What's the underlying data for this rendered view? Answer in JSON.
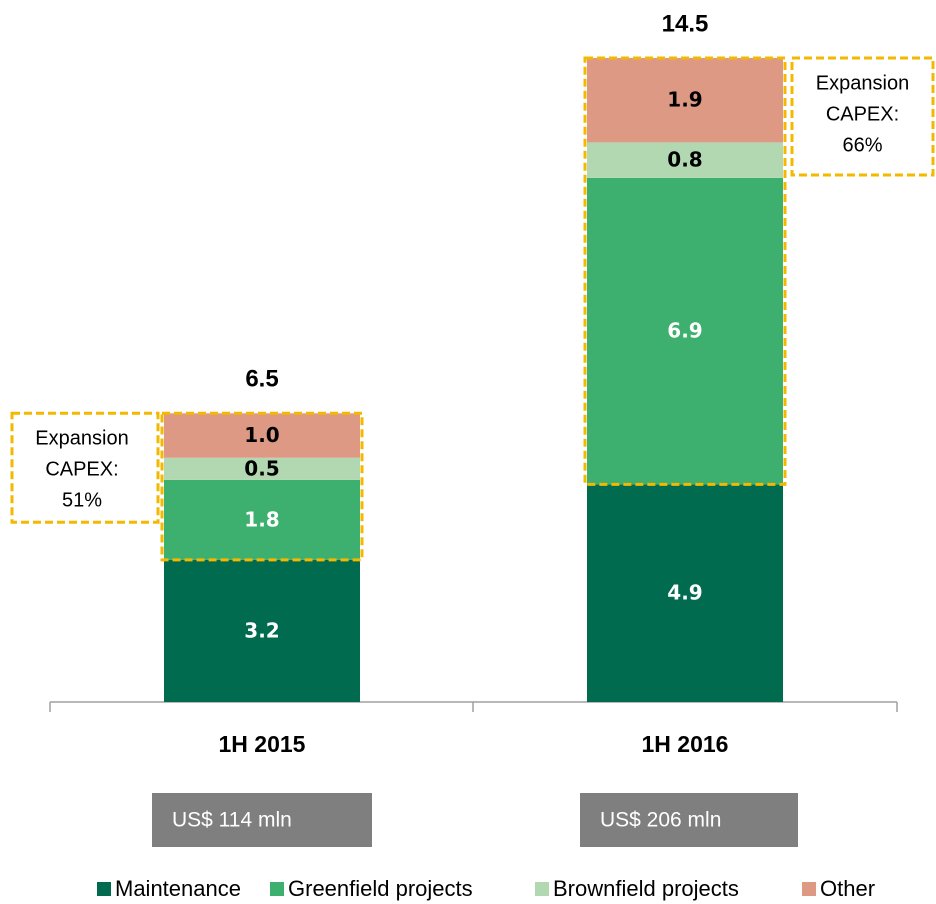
{
  "chart_data": {
    "type": "stacked-bar",
    "categories": [
      "1H 2015",
      "1H 2016"
    ],
    "series": [
      {
        "name": "Maintenance",
        "color": "#006b4e",
        "values": [
          3.2,
          4.9
        ]
      },
      {
        "name": "Greenfield projects",
        "color": "#3daf6e",
        "values": [
          1.8,
          6.9
        ]
      },
      {
        "name": "Brownfield projects",
        "color": "#b2d8b2",
        "values": [
          0.5,
          0.8
        ]
      },
      {
        "name": "Other",
        "color": "#dd9983",
        "values": [
          1,
          1.9
        ],
        "value_labels": [
          "1.0",
          "1.9"
        ]
      }
    ],
    "totals": [
      6.5,
      14.5
    ],
    "annotations": [
      [
        "Expansion",
        "CAPEX:",
        "51%"
      ],
      [
        "Expansion",
        "CAPEX:",
        "66%"
      ]
    ],
    "amounts": [
      "US$ 114 mln",
      "US$ 206 mln"
    ],
    "ylim": [
      0,
      14.5
    ],
    "legend": "bottom"
  }
}
